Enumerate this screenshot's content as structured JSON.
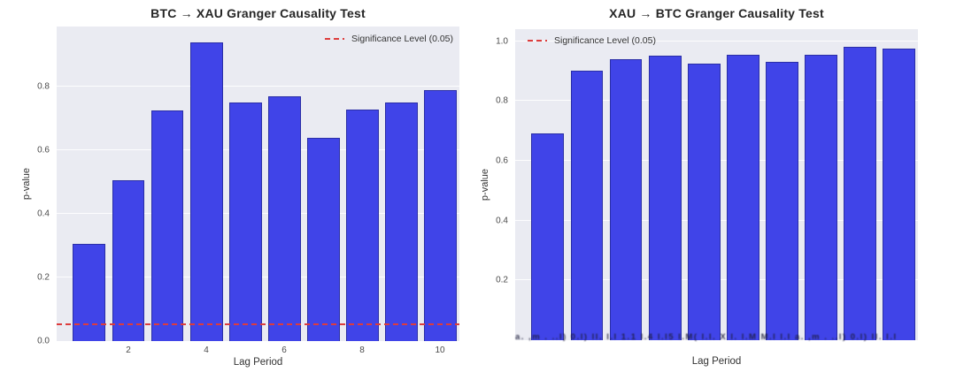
{
  "page": {
    "background": "#ffffff"
  },
  "chart_data": [
    {
      "type": "bar",
      "title": "BTC → XAU Granger Causality Test",
      "xlabel": "Lag Period",
      "ylabel": "p-value",
      "legend_label": "Significance Level (0.05)",
      "legend_position": "top-right",
      "categories": [
        1,
        2,
        3,
        4,
        5,
        6,
        7,
        8,
        9,
        10
      ],
      "values": [
        0.305,
        0.505,
        0.725,
        0.94,
        0.75,
        0.77,
        0.64,
        0.73,
        0.75,
        0.79
      ],
      "yticks": [
        0.0,
        0.2,
        0.4,
        0.6,
        0.8
      ],
      "xticks": [
        2,
        4,
        6,
        8,
        10
      ],
      "ylim": [
        0,
        0.99
      ],
      "significance_level": 0.05,
      "significance_line_visible": true,
      "grid": true,
      "legend_position_note": "inside plot, upper right",
      "colors": {
        "bar": "#4044e8",
        "bar_edge": "#2a2ea6",
        "line": "#dd3c3c",
        "plot_bg": "#eaebf2"
      }
    },
    {
      "type": "bar",
      "title": "XAU → BTC Granger Causality Test",
      "xlabel": "Lag Period",
      "ylabel": "p-value",
      "legend_label": "Significance Level (0.05)",
      "legend_position": "top-left",
      "categories": [
        1,
        2,
        3,
        4,
        5,
        6,
        7,
        8,
        9,
        10
      ],
      "values": [
        0.69,
        0.9,
        0.94,
        0.95,
        0.925,
        0.955,
        0.93,
        0.955,
        0.98,
        0.975
      ],
      "yticks": [
        0.2,
        0.4,
        0.6,
        0.8,
        1.0
      ],
      "xticks": [],
      "ylim": [
        0,
        1.04
      ],
      "significance_level": 0.05,
      "significance_line_visible": false,
      "grid": true,
      "legend_position_note": "inside plot, upper left",
      "illegible_bottom_text": "a. ,m . ..l) 0.l) ll. l.l 1.1 l.4 l.l5 l.M( l.l. X l. l.M M.l l.l a. ,m . ..l) 0.l) ll. l.l",
      "colors": {
        "bar": "#4044e8",
        "bar_edge": "#2a2ea6",
        "line": "#dd3c3c",
        "plot_bg": "#eaebf2"
      }
    }
  ]
}
